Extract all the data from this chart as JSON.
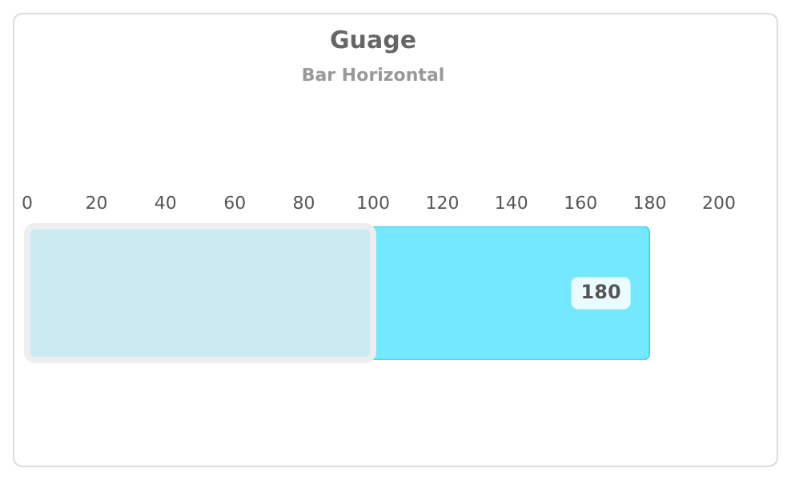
{
  "chart_data": {
    "type": "bar",
    "title": "Guage",
    "subtitle": "Bar Horizontal",
    "orientation": "horizontal",
    "categories": [
      null
    ],
    "values": [
      180
    ],
    "color": "#73e8ff",
    "xlim": [
      0,
      200
    ],
    "xticks": [
      0,
      20,
      40,
      60,
      80,
      100,
      120,
      140,
      160,
      180,
      200
    ],
    "grid": false,
    "tick_labels": "x",
    "data_labels": true,
    "bands": [
      {
        "axis": "x",
        "from": 0,
        "to": 100,
        "color": "#c8eaf0"
      }
    ]
  }
}
